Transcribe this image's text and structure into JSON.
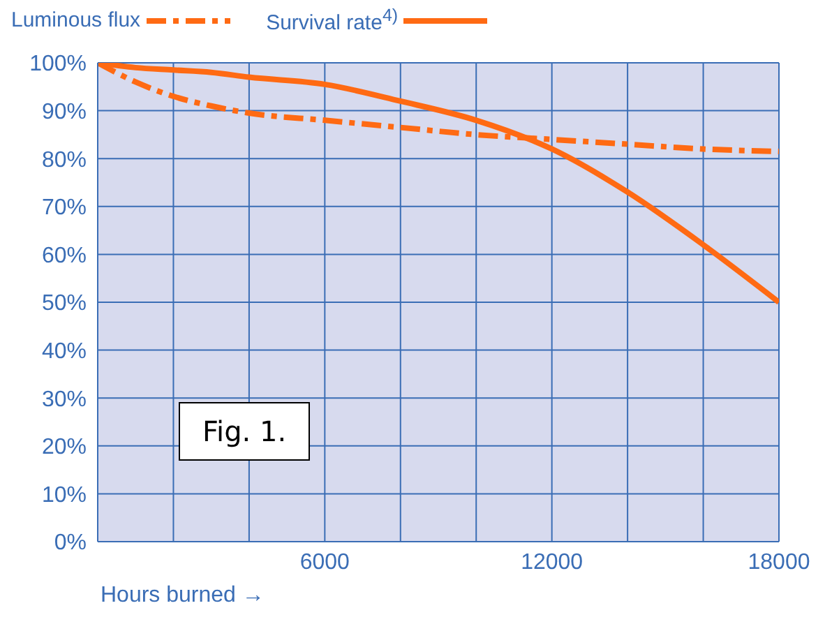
{
  "chart_data": {
    "type": "line",
    "xlabel": "Hours burned →",
    "x": [
      0,
      1000,
      2000,
      3000,
      4000,
      6000,
      8000,
      10000,
      12000,
      14000,
      16000,
      18000
    ],
    "series": [
      {
        "name": "Luminous flux",
        "color": "#ff6a13",
        "line_style": "dashed",
        "values": [
          100,
          96,
          93,
          91,
          89.5,
          88,
          86.5,
          85,
          84,
          83,
          82,
          81.5
        ]
      },
      {
        "name": "Survival rate$^{4)}$",
        "color": "#ff6a13",
        "line_style": "solid",
        "values": [
          100,
          99,
          98.5,
          98,
          97,
          95.5,
          92,
          88,
          82,
          73,
          62,
          50
        ]
      }
    ],
    "xlim": [
      0,
      18000
    ],
    "xticks": [
      {
        "value": 0,
        "label": null
      },
      {
        "value": 2000,
        "label": null
      },
      {
        "value": 4000,
        "label": null
      },
      6000,
      {
        "value": 8000,
        "label": null
      },
      {
        "value": 10000,
        "label": null
      },
      12000,
      {
        "value": 14000,
        "label": null
      },
      {
        "value": 16000,
        "label": null
      },
      18000
    ],
    "ylim": [
      0,
      100
    ],
    "yticks": [
      {
        "value": 0,
        "label": "0%"
      },
      {
        "value": 10,
        "label": "10%"
      },
      {
        "value": 20,
        "label": "20%"
      },
      {
        "value": 30,
        "label": "30%"
      },
      {
        "value": 40,
        "label": "40%"
      },
      {
        "value": 50,
        "label": "50%"
      },
      {
        "value": 60,
        "label": "60%"
      },
      {
        "value": 70,
        "label": "70%"
      },
      {
        "value": 80,
        "label": "80%"
      },
      {
        "value": 90,
        "label": "90%"
      },
      {
        "value": 100,
        "label": "100%"
      }
    ],
    "grid": true,
    "legend": "top left",
    "marker": "none",
    "annotations": [
      "Fig. 1."
    ]
  }
}
